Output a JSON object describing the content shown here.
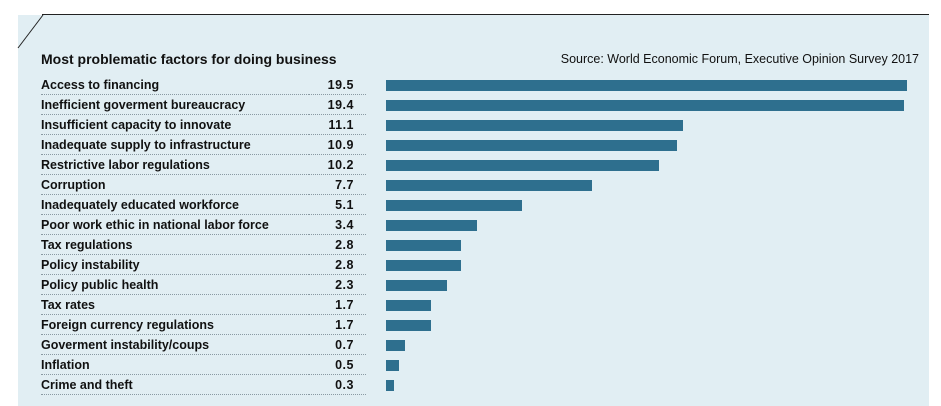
{
  "header": {
    "title": "Most problematic factors for doing business",
    "source": "Source: World Economic Forum, Executive Opinion Survey 2017"
  },
  "chart_data": {
    "type": "bar",
    "orientation": "horizontal",
    "title": "Most problematic factors for doing business",
    "categories": [
      "Access to financing",
      "Inefficient goverment bureaucracy",
      "Insufficient capacity to innovate",
      "Inadequate supply to infrastructure",
      "Restrictive labor regulations",
      "Corruption",
      "Inadequately educated workforce",
      "Poor work ethic in national labor force",
      "Tax regulations",
      "Policy instability",
      "Policy public health",
      "Tax rates",
      "Foreign currency regulations",
      "Goverment instability/coups",
      "Inflation",
      "Crime and theft"
    ],
    "values": [
      19.5,
      19.4,
      11.1,
      10.9,
      10.2,
      7.7,
      5.1,
      3.4,
      2.8,
      2.8,
      2.3,
      1.7,
      1.7,
      0.7,
      0.5,
      0.3
    ],
    "value_labels": [
      "19.5",
      "19.4",
      "11.1",
      "10.9",
      "10.2",
      "7.7",
      "5.1",
      "3.4",
      "2.8",
      "2.8",
      "2.3",
      "1.7",
      "1.7",
      "0.7",
      "0.5",
      "0.3"
    ],
    "xlim": [
      0,
      19.5
    ],
    "bar_color": "#2e6f8e",
    "background_color": "#e1eef3",
    "grid": false,
    "legend": false
  }
}
